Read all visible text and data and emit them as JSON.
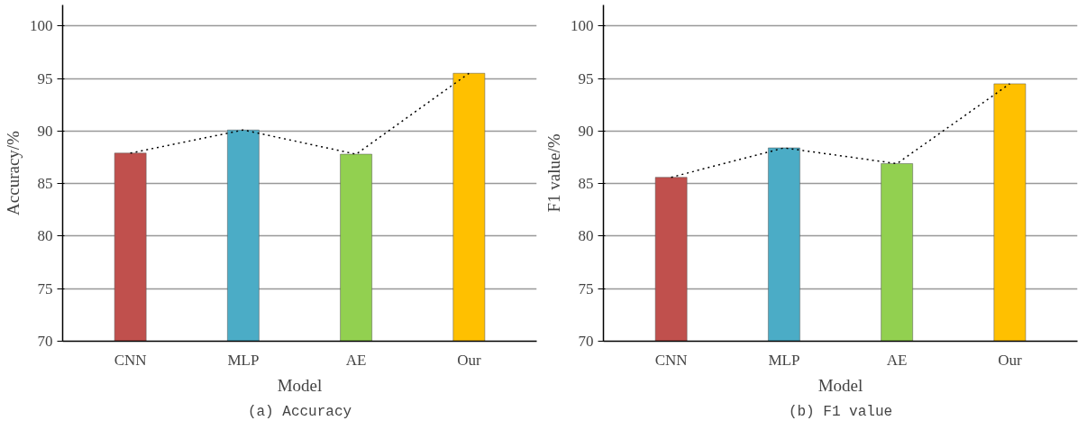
{
  "chart_data": [
    {
      "type": "bar",
      "title": "(a) Accuracy",
      "xlabel": "Model",
      "ylabel": "Accuracy/%",
      "categories": [
        "CNN",
        "MLP",
        "AE",
        "Our"
      ],
      "series": [
        {
          "colors": [
            "#c0504d",
            "#4bacc6",
            "#92d050",
            "#ffc000"
          ],
          "values": [
            87.9,
            90.1,
            87.8,
            95.5
          ]
        },
        {
          "type": "line",
          "color": "#000000",
          "line_style": "dotted",
          "marker": "none",
          "values": [
            87.9,
            90.1,
            87.8,
            95.5
          ]
        }
      ],
      "ylim": [
        70,
        102
      ],
      "yticks": [
        70,
        75,
        80,
        85,
        90,
        95,
        100
      ],
      "grid": "y"
    },
    {
      "type": "bar",
      "title": "(b) F1 value",
      "xlabel": "Model",
      "ylabel": "F1 value/%",
      "categories": [
        "CNN",
        "MLP",
        "AE",
        "Our"
      ],
      "series": [
        {
          "colors": [
            "#c0504d",
            "#4bacc6",
            "#92d050",
            "#ffc000"
          ],
          "values": [
            85.6,
            88.4,
            86.9,
            94.5
          ]
        },
        {
          "type": "line",
          "color": "#000000",
          "line_style": "dotted",
          "marker": "none",
          "values": [
            85.6,
            88.4,
            86.9,
            94.5
          ]
        }
      ],
      "ylim": [
        70,
        102
      ],
      "yticks": [
        70,
        75,
        80,
        85,
        90,
        95,
        100
      ],
      "grid": "y"
    }
  ]
}
